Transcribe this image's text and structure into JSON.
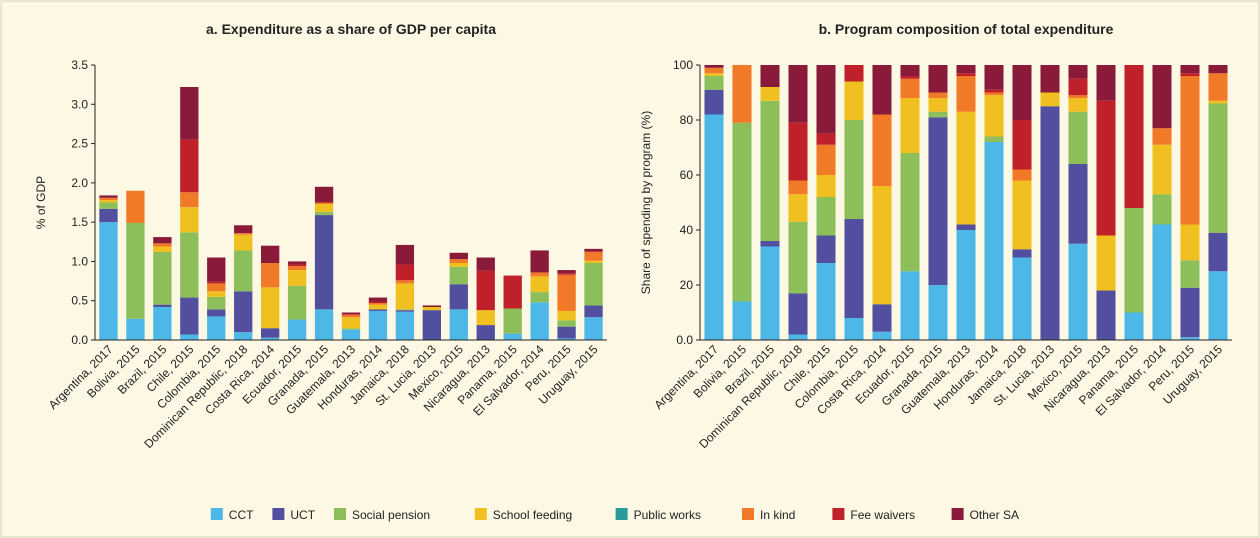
{
  "chart_data": [
    {
      "type": "stacked_bar",
      "title": "a. Expenditure as a share of GDP per capita",
      "y_label": "% of GDP",
      "categories": [
        "Argentina, 2017",
        "Bolivia, 2015",
        "Brazil, 2015",
        "Chile, 2015",
        "Colombia, 2015",
        "Dominican Republic, 2018",
        "Costa Rica, 2014",
        "Ecuador, 2015",
        "Granada, 2015",
        "Guatemala, 2013",
        "Honduras, 2014",
        "Jamaica, 2018",
        "St. Lucia, 2013",
        "Mexico, 2015",
        "Nicaragua, 2013",
        "Panama, 2015",
        "El Salvador, 2014",
        "Peru, 2015",
        "Uruguay, 2015"
      ],
      "ylim": [
        0,
        3.5
      ],
      "yticks": [
        {
          "value": 0,
          "label": "0.0"
        },
        0.5,
        {
          "value": 1,
          "label": "1.0"
        },
        1.5,
        {
          "value": 2,
          "label": "2.0"
        },
        2.5,
        {
          "value": 3,
          "label": "3.0"
        },
        3.5
      ],
      "series": [
        {
          "name": "CCT",
          "color": "#4db8e8",
          "values": [
            1.5,
            0.27,
            0.42,
            0.07,
            0.3,
            0.1,
            0.03,
            0.26,
            0.39,
            0.13,
            0.37,
            0.36,
            0,
            0.39,
            0,
            0.08,
            0.48,
            0.02,
            0.29
          ]
        },
        {
          "name": "UCT",
          "color": "#52509e",
          "values": [
            0.17,
            0,
            0.03,
            0.47,
            0.09,
            0.52,
            0.12,
            0,
            1.2,
            0,
            0.02,
            0.02,
            0.38,
            0.32,
            0.19,
            0,
            0,
            0.15,
            0.15
          ]
        },
        {
          "name": "Social pension",
          "color": "#8cbf5a",
          "values": [
            0.08,
            1.22,
            0.67,
            0.83,
            0.16,
            0.52,
            0,
            0.43,
            0.04,
            0.02,
            0,
            0.01,
            0,
            0.22,
            0,
            0.32,
            0.13,
            0.08,
            0.54
          ]
        },
        {
          "name": "School feeding",
          "color": "#f0c020",
          "values": [
            0.03,
            0,
            0.07,
            0.32,
            0.07,
            0.2,
            0.52,
            0.2,
            0.1,
            0.14,
            0.06,
            0.33,
            0.04,
            0.05,
            0.19,
            0,
            0.2,
            0.12,
            0.03
          ]
        },
        {
          "name": "Public works",
          "color": "#2a9a9a",
          "values": [
            0,
            0,
            0,
            0,
            0,
            0,
            0,
            0,
            0,
            0,
            0,
            0,
            0,
            0,
            0,
            0,
            0,
            0,
            0
          ]
        },
        {
          "name": "In kind",
          "color": "#f07a28",
          "values": [
            0.03,
            0.41,
            0.04,
            0.19,
            0.1,
            0.02,
            0.31,
            0.05,
            0.02,
            0.03,
            0.02,
            0.04,
            0,
            0.05,
            0,
            0,
            0.05,
            0.46,
            0.11
          ]
        },
        {
          "name": "Fee waivers",
          "color": "#c0202a",
          "values": [
            0,
            0,
            0,
            0.67,
            0.02,
            0,
            0,
            0.02,
            0,
            0.01,
            0.02,
            0.2,
            0,
            0,
            0.5,
            0.42,
            0,
            0.02,
            0.01
          ]
        },
        {
          "name": "Other SA",
          "color": "#8a1a3a",
          "values": [
            0.03,
            0,
            0.08,
            0.67,
            0.31,
            0.1,
            0.22,
            0.04,
            0.2,
            0.02,
            0.05,
            0.25,
            0.02,
            0.08,
            0.17,
            0,
            0.28,
            0.04,
            0.03
          ]
        }
      ]
    },
    {
      "type": "stacked_bar",
      "title": "b. Program composition of total expenditure",
      "y_label": "Share of spending by program (%)",
      "categories": [
        "Argentina, 2017",
        "Bolivia, 2015",
        "Brazil, 2015",
        "Dominican Republic, 2018",
        "Chile, 2015",
        "Colombia, 2015",
        "Costa Rica, 2014",
        "Ecuador, 2015",
        "Granada, 2015",
        "Guatemala, 2013",
        "Honduras, 2014",
        "Jamaica, 2018",
        "St. Lucia, 2013",
        "Mexico, 2015",
        "Nicaragua, 2013",
        "Panama, 2015",
        "El Salvador, 2014",
        "Peru, 2015",
        "Uruguay, 2015"
      ],
      "ylim": [
        0,
        100
      ],
      "yticks": [
        {
          "value": 0,
          "label": "0.0"
        },
        20,
        40,
        60,
        80,
        100
      ],
      "series": [
        {
          "color": "#4db8e8",
          "values": [
            82,
            14,
            34,
            2,
            28,
            8,
            3,
            25,
            20,
            40,
            72,
            30,
            0,
            35,
            0,
            10,
            42,
            1,
            25
          ]
        },
        {
          "color": "#52509e",
          "values": [
            9,
            0,
            2,
            15,
            10,
            36,
            10,
            0,
            61,
            2,
            0,
            3,
            85,
            29,
            18,
            0,
            0,
            18,
            14
          ]
        },
        {
          "color": "#8cbf5a",
          "values": [
            5,
            65,
            51,
            26,
            14,
            36,
            0,
            43,
            2,
            0,
            2,
            0,
            0,
            19,
            0,
            38,
            11,
            10,
            47
          ]
        },
        {
          "color": "#f0c020",
          "values": [
            1,
            0,
            5,
            10,
            8,
            14,
            43,
            20,
            5,
            41,
            15,
            25,
            5,
            5,
            20,
            0,
            18,
            13,
            1
          ]
        },
        {
          "color": "#2a9a9a",
          "values": [
            0,
            0,
            0,
            0,
            0,
            0,
            0,
            0,
            0,
            0,
            0,
            0,
            0,
            0,
            0,
            0,
            0,
            0,
            0
          ]
        },
        {
          "color": "#f07a28",
          "values": [
            2,
            21,
            0,
            5,
            11,
            0,
            26,
            7,
            2,
            13,
            1,
            4,
            0,
            1,
            0,
            0,
            6,
            54,
            10
          ]
        },
        {
          "color": "#c0202a",
          "values": [
            0,
            0,
            0,
            21,
            4,
            6,
            0,
            1,
            0,
            1,
            1,
            18,
            0,
            6,
            49,
            52,
            0,
            1,
            0
          ]
        },
        {
          "color": "#8a1a3a",
          "values": [
            1,
            0,
            8,
            21,
            25,
            0,
            18,
            4,
            10,
            3,
            9,
            20,
            10,
            5,
            13,
            0,
            23,
            3,
            3
          ]
        }
      ]
    }
  ]
}
